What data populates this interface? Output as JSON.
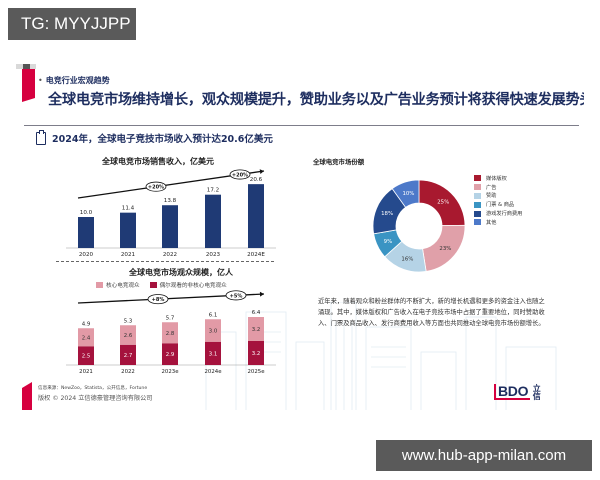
{
  "overlay": {
    "tg_label": "TG: MYYJJPP",
    "url_label": "www.hub-app-milan.com"
  },
  "slide": {
    "section_label": "电竞行业宏观趋势",
    "headline": "全球电竞市场维持增长，观众规模提升，赞助业务以及广告业务预计将获得快速发展势头",
    "summary": "2024年，全球电子竞技市场收入预计达20.6亿美元",
    "body_text": "近年来，随着观众和粉丝群体的不断扩大，新的增长机遇和更多的资金注入也随之涌现。其中，媒体版权和广告收入在电子竞技市场中占据了重要地位，同时赞助收入、门票及商品收入、发行商费用收入等方面也共同推动全球电竞市场份额增长。",
    "source": "信息来源：NewZoo，Statista，公开信息，Fortune",
    "copyright": "版权 © 2024 立信德豪管理咨询有限公司",
    "logo": {
      "text": "BDO",
      "cn": "立信"
    }
  },
  "colors": {
    "navy": "#1d2d5f",
    "bar_blue": "#1f3a75",
    "brand_red": "#d6003f",
    "dark_red": "#a5123d",
    "light_pink": "#e29aa6"
  },
  "chart_data": [
    {
      "type": "bar",
      "title": "全球电竞市场销售收入，亿美元",
      "categories": [
        "2020",
        "2021",
        "2022",
        "2023",
        "2024E"
      ],
      "values": [
        10.0,
        11.4,
        13.8,
        17.2,
        20.6
      ],
      "value_labels": [
        "10.0",
        "11.4",
        "13.8",
        "17.2",
        "20.6"
      ],
      "annotations": [
        "+20%",
        "+20%"
      ],
      "xlabel": "",
      "ylabel": "",
      "ylim": [
        0,
        24
      ],
      "grid": false,
      "color": "#1f3a75"
    },
    {
      "type": "bar",
      "stacked": true,
      "title": "全球电竞市场观众规模，亿人",
      "categories": [
        "2021",
        "2022",
        "2023e",
        "2024e",
        "2025e"
      ],
      "series": [
        {
          "name": "偶尔观看的非核心电竞观众",
          "values": [
            2.5,
            2.7,
            2.9,
            3.1,
            3.2
          ],
          "labels": [
            "2.5",
            "2.7",
            "2.9",
            "3.1",
            "3.2"
          ],
          "color": "#a5123d"
        },
        {
          "name": "核心电竞观众",
          "values": [
            2.4,
            2.6,
            2.8,
            3.0,
            3.2
          ],
          "labels": [
            "2.4",
            "2.6",
            "2.8",
            "3.0",
            "3.2"
          ],
          "color": "#e29aa6"
        }
      ],
      "totals": [
        "4.9",
        "5.3",
        "5.7",
        "6.1",
        "6.4"
      ],
      "legend": [
        "核心电竞观众",
        "偶尔观看的非核心电竞观众"
      ],
      "annotations": [
        "+8%",
        "+5%"
      ],
      "legend_position": "top",
      "ylim": [
        0,
        8
      ],
      "grid": false
    },
    {
      "type": "pie",
      "donut": true,
      "title": "全球电竞市场份额",
      "categories": [
        "媒体版权",
        "广告",
        "赞助",
        "门票 & 商品",
        "游戏发行商费用",
        "其他"
      ],
      "values": [
        25,
        23,
        16,
        9,
        18,
        10
      ],
      "labels": [
        "25%",
        "23%",
        "16%",
        "9%",
        "18%",
        "10%"
      ],
      "colors": [
        "#a8192f",
        "#e0a0a9",
        "#b5d3e6",
        "#3a94c3",
        "#254a8d",
        "#4d79c9"
      ],
      "legend_position": "right"
    }
  ]
}
